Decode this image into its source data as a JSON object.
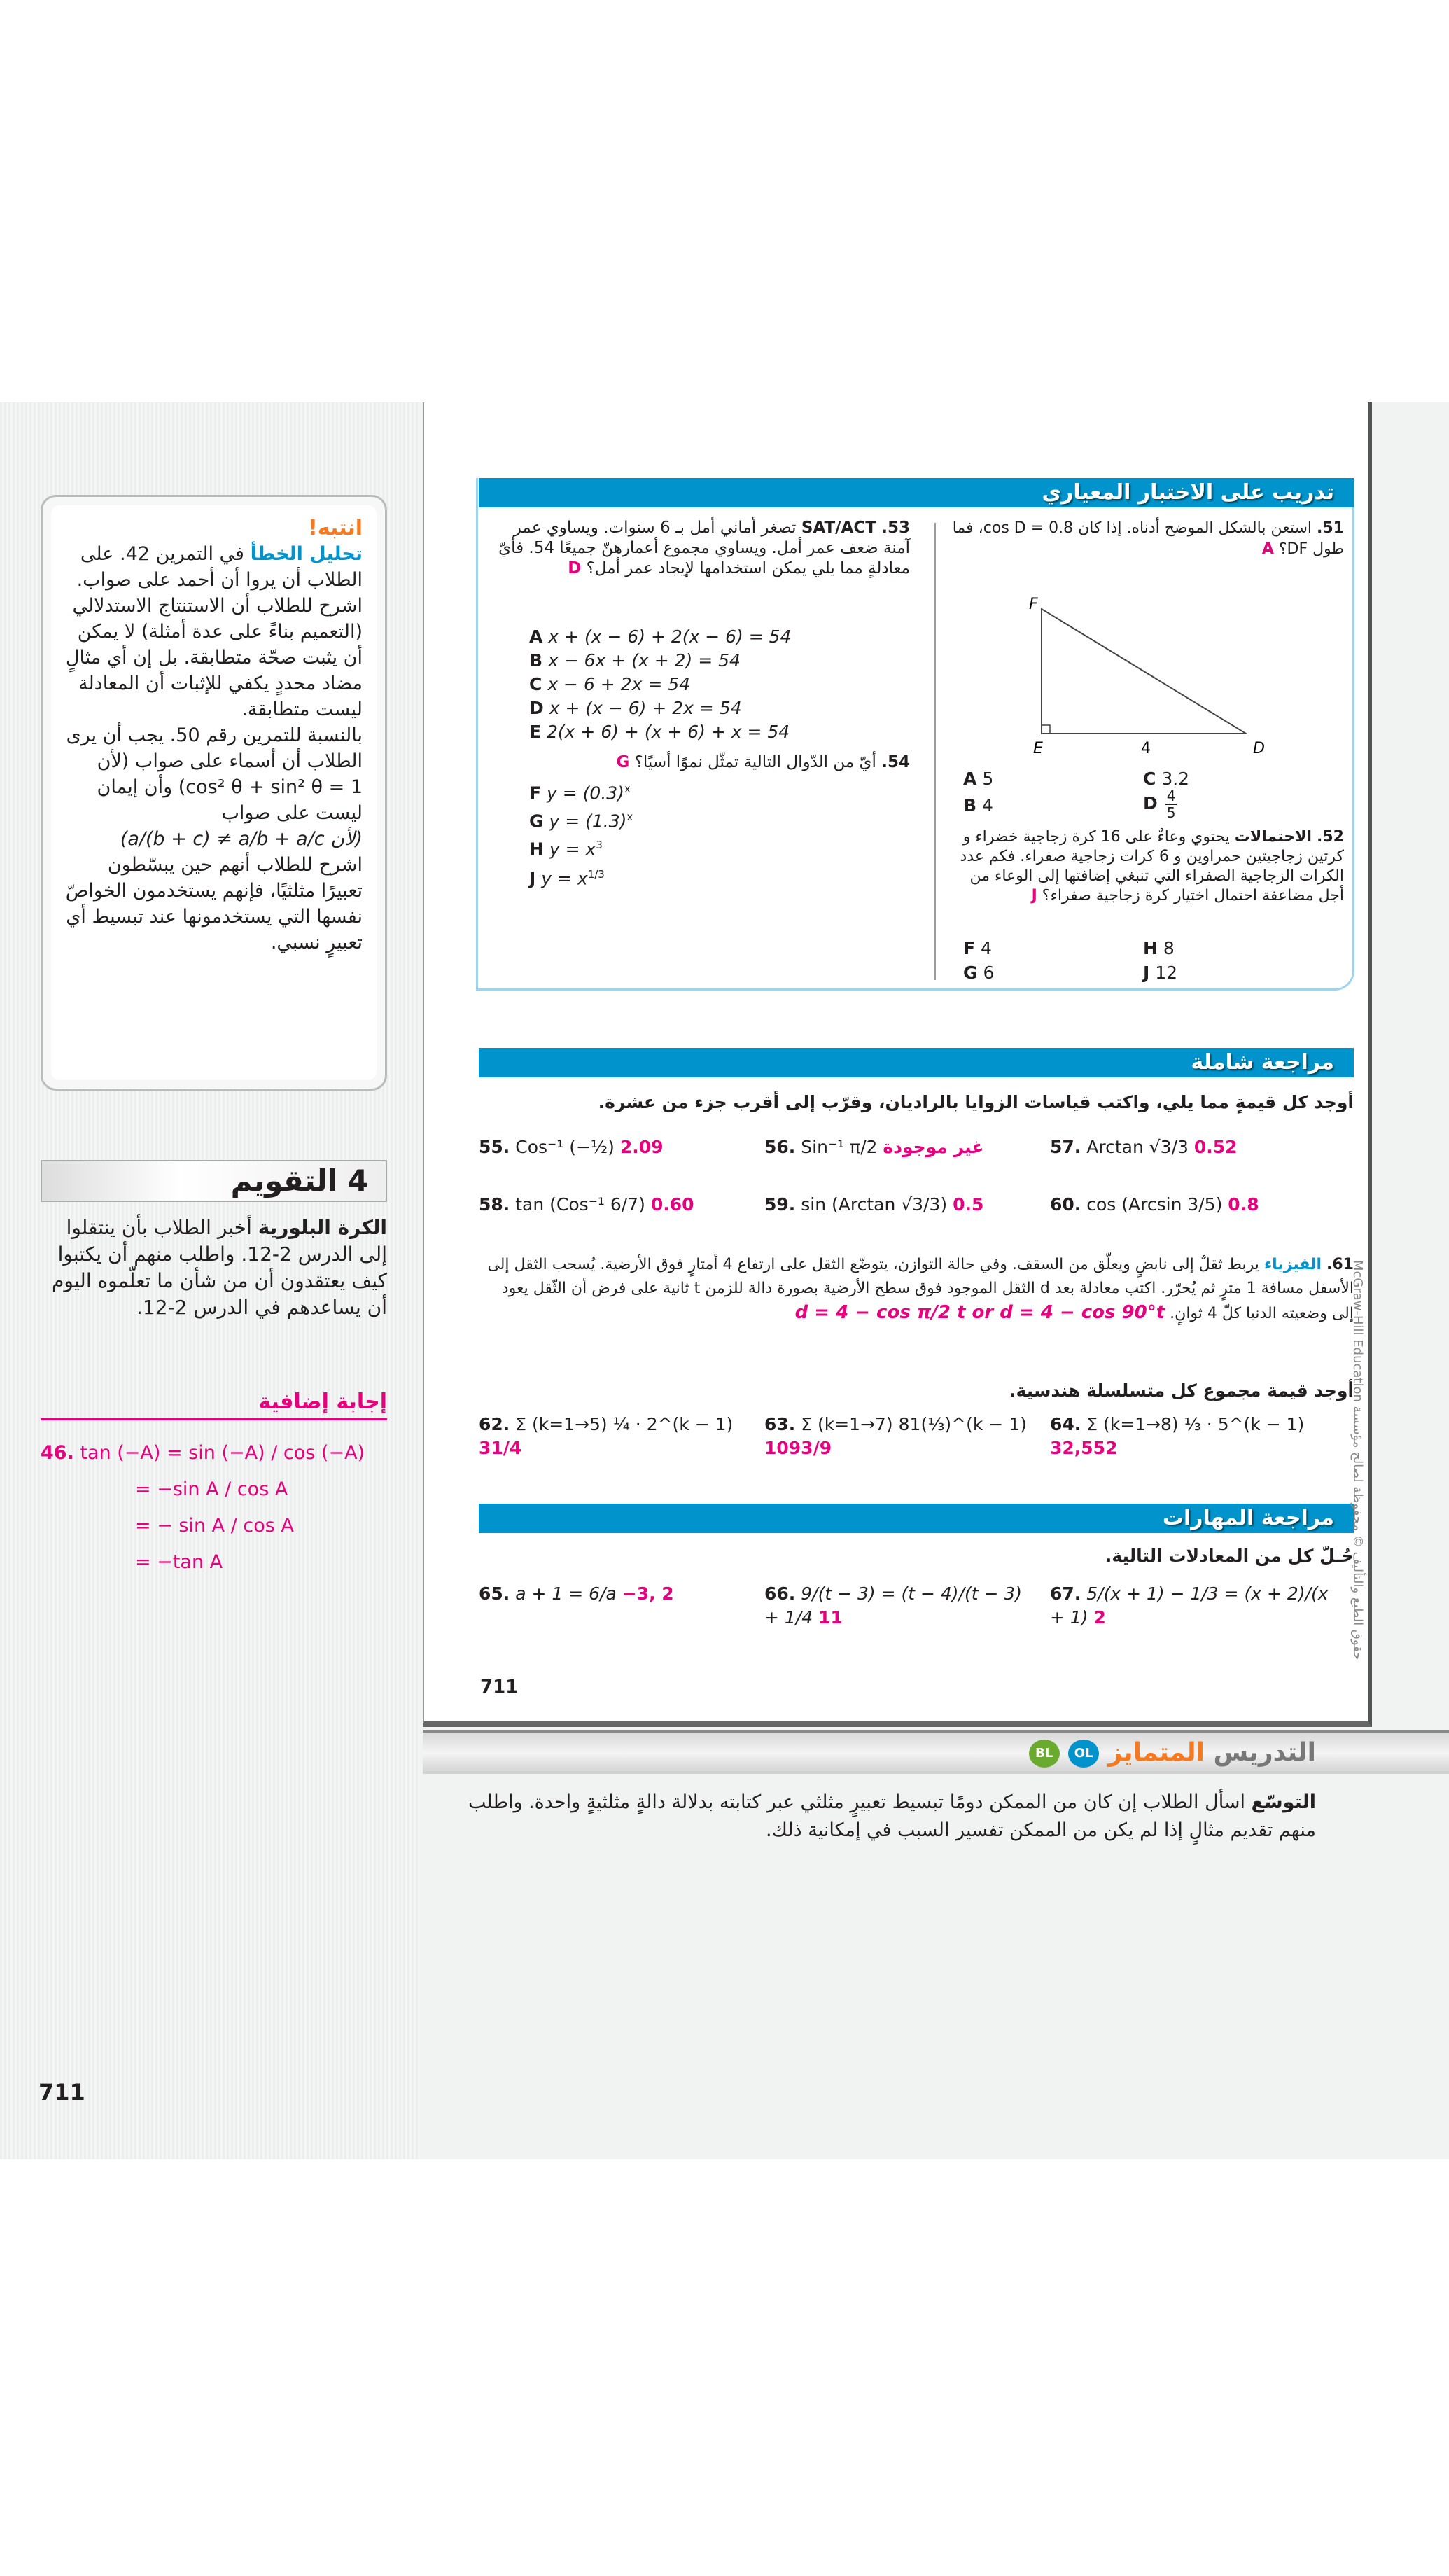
{
  "test_practice": {
    "title": "تدريب على الاختبار المعياري",
    "q51": {
      "num": "51.",
      "text": "استعن بالشكل الموضح أدناه. إذا كان cos D = 0.8، فما",
      "text2": "طول DF؟",
      "answer": "A",
      "labels": {
        "F": "F",
        "E": "E",
        "D": "D",
        "side": "4"
      },
      "options": [
        {
          "l": "A",
          "v": "5"
        },
        {
          "l": "B",
          "v": "4"
        },
        {
          "l": "C",
          "v": "3.2"
        },
        {
          "l": "D",
          "v_num": "4",
          "v_den": "5"
        }
      ]
    },
    "q52": {
      "num": "52.",
      "topic": "الاحتمالات",
      "text": "يحتوي وعاءٌ على 16 كرة زجاجية خضراء و كرتين زجاجيتين حمراوين و 6 كرات زجاجية صفراء. فكم عدد الكرات الزجاجية الصفراء التي تنبغي إضافتها إلى الوعاء من أجل مضاعفة احتمال اختيار كرة زجاجية صفراء؟",
      "answer": "J",
      "options": [
        {
          "l": "F",
          "v": "4"
        },
        {
          "l": "G",
          "v": "6"
        },
        {
          "l": "H",
          "v": "8"
        },
        {
          "l": "J",
          "v": "12"
        }
      ]
    },
    "q53": {
      "num": "53.",
      "topic": "SAT/ACT",
      "text": "تصغر أماني أمل بـ 6 سنوات. ويساوي عمر آمنة ضعف عمر أمل. ويساوي مجموع أعمارهنّ جميعًا 54. فأيّ معادلةٍ مما يلي يمكن استخدامها لإيجاد عمر أمل؟",
      "answer": "D",
      "options": [
        {
          "l": "A",
          "v": "x + (x − 6) + 2(x − 6) = 54"
        },
        {
          "l": "B",
          "v": "x − 6x + (x + 2) = 54"
        },
        {
          "l": "C",
          "v": "x − 6 + 2x = 54"
        },
        {
          "l": "D",
          "v": "x + (x − 6) + 2x = 54"
        },
        {
          "l": "E",
          "v": "2(x + 6) + (x + 6) + x = 54"
        }
      ]
    },
    "q54": {
      "num": "54.",
      "text": "أيّ من الدّوال التالية تمثّل نموًا أسيًا؟",
      "answer": "G",
      "options": [
        {
          "l": "F",
          "v": "y = (0.3)",
          "sup": "x"
        },
        {
          "l": "G",
          "v": "y = (1.3)",
          "sup": "x"
        },
        {
          "l": "H",
          "v": "y = x",
          "sup": "3"
        },
        {
          "l": "J",
          "v": "y = x",
          "sup": "1/3"
        }
      ]
    }
  },
  "comprehensive": {
    "title": "مراجعة شاملة",
    "instruction": "أوجد كل قيمةٍ مما يلي، واكتب قياسات الزوايا بالراديان، وقرّب إلى أقرب جزء من عشرة.",
    "items": [
      {
        "num": "55.",
        "expr": "Cos⁻¹ (−½)",
        "answer": "2.09"
      },
      {
        "num": "56.",
        "expr": "Sin⁻¹ π/2",
        "answer": "غير موجودة"
      },
      {
        "num": "57.",
        "expr": "Arctan √3/3",
        "answer": "0.52"
      },
      {
        "num": "58.",
        "expr": "tan (Cos⁻¹ 6/7)",
        "answer": "0.60"
      },
      {
        "num": "59.",
        "expr": "sin (Arctan √3/3)",
        "answer": "0.5"
      },
      {
        "num": "60.",
        "expr": "cos (Arcsin 3/5)",
        "answer": "0.8"
      }
    ],
    "q61": {
      "num": "61.",
      "topic": "الفيزياء",
      "text": "يربط ثقلٌ إلى نابضٍ ويعلّق من السقف. وفي حالة التوازن، يتوضّع الثقل على ارتفاع 4 أمتارٍ فوق الأرضية. يُسحب الثقل إلى الأسفل مسافة 1 مترٍ ثم يُحرّر. اكتب معادلة بعد d الثقل الموجود فوق سطح الأرضية بصورة دالة للزمن t ثانية على فرض أن الثّقل يعود إلى وضعيته الدنيا كلّ 4 ثوانٍ.",
      "answer": "d = 4 − cos π/2 t or d = 4 − cos 90°t"
    },
    "geo_instruction": "أوجد قيمة مجموع كل متسلسلة هندسية.",
    "series": [
      {
        "num": "62.",
        "expr": "Σ (k=1→5) ¼ · 2^(k − 1)",
        "answer": "31/4"
      },
      {
        "num": "63.",
        "expr": "Σ (k=1→7) 81(⅓)^(k − 1)",
        "answer": "1093/9"
      },
      {
        "num": "64.",
        "expr": "Σ (k=1→8) ⅓ · 5^(k − 1)",
        "answer": "32,552"
      }
    ]
  },
  "skills": {
    "title": "مراجعة المهارات",
    "instruction": "حُـلّ كل من المعادلات التالية.",
    "items": [
      {
        "num": "65.",
        "expr": "a + 1 = 6/a",
        "answer": "−3, 2"
      },
      {
        "num": "66.",
        "expr": "9/(t − 3) = (t − 4)/(t − 3) + 1/4",
        "answer": "11"
      },
      {
        "num": "67.",
        "expr": "5/(x + 1) − 1/3 = (x + 2)/(x + 1)",
        "answer": "2"
      }
    ]
  },
  "page_number": "711",
  "copyright": "McGraw-Hill Education حقوق الطبع والتأليف © محفوظة لصالح مؤسسة",
  "differentiated": {
    "title_a": "التدريس",
    "title_b": "المتمايز",
    "badge_ol": "OL",
    "badge_bl": "BL",
    "lead": "التوسّع",
    "text": "اسأل الطلاب إن كان من الممكن دومًا تبسيط تعبيرٍ مثلثي عبر كتابته بدلالة دالةٍ مثلثيةٍ واحدة. واطلب منهم تقديم مثالٍ إذا لم يكن من الممكن تفسير السبب في إمكانية ذلك."
  },
  "sidebar": {
    "watch_out": {
      "title": "انتبه!",
      "heading": "تحليل الخطأ",
      "text1": "في التمرين 42. على الطلاب أن يروا أن أحمد على صواب. اشرح للطلاب أن الاستنتاج الاستدلالي (التعميم بناءً على عدة أمثلة) لا يمكن أن يثبت صحّة متطابقة. بل إن أي مثالٍ مضاد محددٍ يكفي للإثبات أن المعادلة ليست متطابقة.",
      "text2": "بالنسبة للتمرين رقم 50. يجب أن يرى الطلاب أن أسماء على صواب (لأن cos² θ + sin² θ = 1) وأن إيمان ليست على صواب",
      "formula": "(لأن a/(b + c) ≠ a/b + a/c)",
      "text3": "اشرح للطلاب أنهم حين يبسّطون تعبيرًا مثلثيًا، فإنهم يستخدمون الخواصّ نفسها التي يستخدمونها عند تبسيط أي تعبيرٍ نسبي."
    },
    "assess": {
      "num": "4",
      "title": "التقويم",
      "lead": "الكرة البلورية",
      "text": "أخبر الطلاب بأن ينتقلوا إلى الدرس 2-12. واطلب منهم أن يكتبوا كيف يعتقدون أن من شأن ما تعلّموه اليوم أن يساعدهم في الدرس 2-12."
    },
    "additional": {
      "title": "إجابة إضافية",
      "num": "46.",
      "lines": [
        "tan (−A) = sin (−A) / cos (−A)",
        "= −sin A / cos A",
        "= − sin A / cos A",
        "= −tan A"
      ]
    }
  },
  "colors": {
    "accent_blue": "#0093cc",
    "answer_pink": "#e6007e",
    "orange": "#f47920",
    "bl_green": "#6aaa2e"
  }
}
